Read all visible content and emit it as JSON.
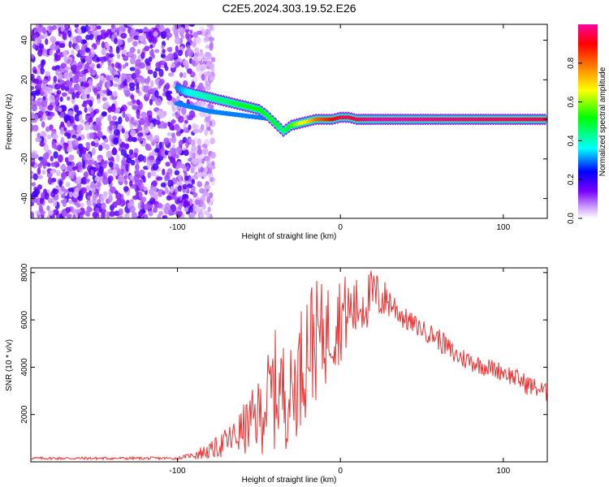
{
  "chart_data": [
    {
      "type": "heatmap",
      "title": "C2E5.2024.303.19.52.E26",
      "xlabel": "Height of straight line (km)",
      "ylabel": "Frequency (Hz)",
      "xlim": [
        -190,
        127
      ],
      "ylim": [
        -50,
        48
      ],
      "xticks": [
        -100,
        0,
        100
      ],
      "yticks": [
        -40,
        -20,
        0,
        20,
        40
      ],
      "colorbar": {
        "label": "Normalized spectral amplitude",
        "range": [
          0,
          1
        ],
        "ticks": [
          0.0,
          0.2,
          0.4,
          0.6,
          0.8
        ],
        "colors": [
          "#ffffff",
          "#cc99ff",
          "#7a00ff",
          "#0000ff",
          "#00ffff",
          "#00ff00",
          "#ffff00",
          "#ff8000",
          "#ff0000",
          "#ff00a0"
        ]
      },
      "noise_region": {
        "x_from": -190,
        "x_to": -90,
        "level": 0.15
      },
      "track": [
        {
          "x": -100,
          "y": 16,
          "a": 0.3
        },
        {
          "x": -95,
          "y": 14,
          "a": 0.35
        },
        {
          "x": -90,
          "y": 13,
          "a": 0.38
        },
        {
          "x": -85,
          "y": 12,
          "a": 0.4
        },
        {
          "x": -80,
          "y": 11,
          "a": 0.42
        },
        {
          "x": -75,
          "y": 10,
          "a": 0.45
        },
        {
          "x": -70,
          "y": 9,
          "a": 0.45
        },
        {
          "x": -65,
          "y": 8,
          "a": 0.48
        },
        {
          "x": -60,
          "y": 7,
          "a": 0.5
        },
        {
          "x": -55,
          "y": 6,
          "a": 0.52
        },
        {
          "x": -50,
          "y": 5,
          "a": 0.52
        },
        {
          "x": -45,
          "y": 2,
          "a": 0.5
        },
        {
          "x": -40,
          "y": -2,
          "a": 0.5
        },
        {
          "x": -35,
          "y": -6,
          "a": 0.45
        },
        {
          "x": -30,
          "y": -3,
          "a": 0.55
        },
        {
          "x": -25,
          "y": -2,
          "a": 0.65
        },
        {
          "x": -20,
          "y": -1,
          "a": 0.7
        },
        {
          "x": -15,
          "y": 0,
          "a": 0.8
        },
        {
          "x": -10,
          "y": 0,
          "a": 0.85
        },
        {
          "x": -5,
          "y": 0,
          "a": 0.9
        },
        {
          "x": 0,
          "y": 1,
          "a": 0.95
        },
        {
          "x": 5,
          "y": 1,
          "a": 0.95
        },
        {
          "x": 10,
          "y": 0,
          "a": 0.95
        },
        {
          "x": 20,
          "y": 0,
          "a": 1.0
        },
        {
          "x": 40,
          "y": 0,
          "a": 1.0
        },
        {
          "x": 60,
          "y": 0,
          "a": 0.98
        },
        {
          "x": 80,
          "y": 0,
          "a": 0.97
        },
        {
          "x": 100,
          "y": 0,
          "a": 0.96
        },
        {
          "x": 127,
          "y": 0,
          "a": 0.95
        }
      ],
      "secondary_track": [
        {
          "x": -100,
          "y": 8
        },
        {
          "x": -90,
          "y": 6
        },
        {
          "x": -80,
          "y": 4
        },
        {
          "x": -70,
          "y": 3
        },
        {
          "x": -60,
          "y": 2
        },
        {
          "x": -50,
          "y": 1
        },
        {
          "x": -40,
          "y": 0
        }
      ]
    },
    {
      "type": "line",
      "xlabel": "Height of straight line (km)",
      "ylabel": "SNR (10 * v/v)",
      "xlim": [
        -190,
        127
      ],
      "ylim": [
        0,
        8200
      ],
      "xticks": [
        -100,
        0,
        100
      ],
      "yticks": [
        2000,
        4000,
        6000,
        8000
      ],
      "color": "#ee3333",
      "envelope": [
        {
          "x": -190,
          "low": 0,
          "high": 300
        },
        {
          "x": -100,
          "low": 0,
          "high": 300
        },
        {
          "x": -80,
          "low": 100,
          "high": 800
        },
        {
          "x": -65,
          "low": 200,
          "high": 1800
        },
        {
          "x": -50,
          "low": 300,
          "high": 3500
        },
        {
          "x": -40,
          "low": 400,
          "high": 5600
        },
        {
          "x": -30,
          "low": 600,
          "high": 4800
        },
        {
          "x": -20,
          "low": 2000,
          "high": 7900
        },
        {
          "x": -10,
          "low": 3000,
          "high": 7500
        },
        {
          "x": 0,
          "low": 4200,
          "high": 8000
        },
        {
          "x": 10,
          "low": 5000,
          "high": 7800
        },
        {
          "x": 20,
          "low": 5800,
          "high": 8200
        },
        {
          "x": 30,
          "low": 6000,
          "high": 7500
        },
        {
          "x": 40,
          "low": 5500,
          "high": 6500
        },
        {
          "x": 50,
          "low": 5200,
          "high": 6000
        },
        {
          "x": 60,
          "low": 4700,
          "high": 5700
        },
        {
          "x": 70,
          "low": 4000,
          "high": 5000
        },
        {
          "x": 85,
          "low": 3700,
          "high": 4500
        },
        {
          "x": 100,
          "low": 3400,
          "high": 4200
        },
        {
          "x": 115,
          "low": 2800,
          "high": 3700
        },
        {
          "x": 127,
          "low": 2500,
          "high": 3300
        }
      ]
    }
  ]
}
